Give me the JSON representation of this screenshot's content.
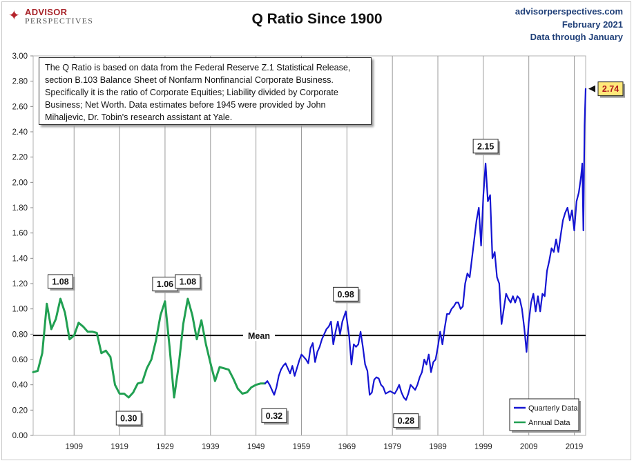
{
  "header": {
    "logo_line1": "ADVISOR",
    "logo_line2": "PERSPECTIVES",
    "title": "Q Ratio Since 1900",
    "source_site": "advisorperspectives.com",
    "source_date": "February 2021",
    "source_note": "Data through January"
  },
  "colors": {
    "quarterly": "#1414d2",
    "annual": "#21a052",
    "mean_line": "#000000",
    "grid": "#9a9a9a",
    "callout_highlight": "#ffe87a"
  },
  "chart_data": {
    "type": "line",
    "title": "Q Ratio Since 1900",
    "xlabel": "",
    "ylabel": "",
    "xlim": [
      1900,
      2021.5
    ],
    "ylim": [
      0,
      3.0
    ],
    "y_ticks": [
      "0.00",
      "0.20",
      "0.40",
      "0.60",
      "0.80",
      "1.00",
      "1.20",
      "1.40",
      "1.60",
      "1.80",
      "2.00",
      "2.20",
      "2.40",
      "2.60",
      "2.80",
      "3.00"
    ],
    "x_ticks": [
      "1909",
      "1919",
      "1929",
      "1939",
      "1949",
      "1959",
      "1969",
      "1979",
      "1989",
      "1999",
      "2009",
      "2019"
    ],
    "grid": "vertical",
    "mean": {
      "value": 0.79,
      "label": "Mean"
    },
    "legend": {
      "position": "bottom-right",
      "entries": [
        "Quarterly Data",
        "Annual Data"
      ]
    },
    "series": [
      {
        "name": "Annual Data",
        "points": [
          [
            1900,
            0.5
          ],
          [
            1901,
            0.51
          ],
          [
            1902,
            0.65
          ],
          [
            1903,
            1.04
          ],
          [
            1904,
            0.84
          ],
          [
            1905,
            0.92
          ],
          [
            1906,
            1.08
          ],
          [
            1907,
            0.97
          ],
          [
            1908,
            0.76
          ],
          [
            1909,
            0.79
          ],
          [
            1910,
            0.89
          ],
          [
            1911,
            0.86
          ],
          [
            1912,
            0.82
          ],
          [
            1913,
            0.82
          ],
          [
            1914,
            0.81
          ],
          [
            1915,
            0.65
          ],
          [
            1916,
            0.67
          ],
          [
            1917,
            0.62
          ],
          [
            1918,
            0.4
          ],
          [
            1919,
            0.33
          ],
          [
            1920,
            0.33
          ],
          [
            1921,
            0.3
          ],
          [
            1922,
            0.34
          ],
          [
            1923,
            0.41
          ],
          [
            1924,
            0.42
          ],
          [
            1925,
            0.53
          ],
          [
            1926,
            0.6
          ],
          [
            1927,
            0.75
          ],
          [
            1928,
            0.95
          ],
          [
            1929,
            1.06
          ],
          [
            1930,
            0.7
          ],
          [
            1931,
            0.3
          ],
          [
            1932,
            0.55
          ],
          [
            1933,
            0.88
          ],
          [
            1934,
            1.08
          ],
          [
            1935,
            0.95
          ],
          [
            1936,
            0.76
          ],
          [
            1937,
            0.91
          ],
          [
            1938,
            0.72
          ],
          [
            1939,
            0.57
          ],
          [
            1940,
            0.43
          ],
          [
            1941,
            0.54
          ],
          [
            1942,
            0.53
          ],
          [
            1943,
            0.52
          ],
          [
            1944,
            0.45
          ],
          [
            1945,
            0.37
          ],
          [
            1946,
            0.33
          ],
          [
            1947,
            0.34
          ],
          [
            1948,
            0.38
          ],
          [
            1949,
            0.4
          ],
          [
            1950,
            0.41
          ],
          [
            1951,
            0.41
          ]
        ]
      },
      {
        "name": "Quarterly Data",
        "points": [
          [
            1951,
            0.41
          ],
          [
            1951.5,
            0.43
          ],
          [
            1952,
            0.4
          ],
          [
            1952.5,
            0.36
          ],
          [
            1953,
            0.32
          ],
          [
            1953.5,
            0.38
          ],
          [
            1954,
            0.47
          ],
          [
            1954.5,
            0.52
          ],
          [
            1955,
            0.55
          ],
          [
            1955.5,
            0.57
          ],
          [
            1956,
            0.53
          ],
          [
            1956.5,
            0.49
          ],
          [
            1957,
            0.55
          ],
          [
            1957.5,
            0.47
          ],
          [
            1958,
            0.53
          ],
          [
            1958.5,
            0.59
          ],
          [
            1959,
            0.64
          ],
          [
            1959.5,
            0.62
          ],
          [
            1960,
            0.6
          ],
          [
            1960.5,
            0.57
          ],
          [
            1961,
            0.69
          ],
          [
            1961.5,
            0.73
          ],
          [
            1962,
            0.58
          ],
          [
            1962.5,
            0.66
          ],
          [
            1963,
            0.7
          ],
          [
            1963.5,
            0.76
          ],
          [
            1964,
            0.8
          ],
          [
            1964.5,
            0.84
          ],
          [
            1965,
            0.86
          ],
          [
            1965.5,
            0.9
          ],
          [
            1966,
            0.72
          ],
          [
            1966.5,
            0.82
          ],
          [
            1967,
            0.9
          ],
          [
            1967.5,
            0.8
          ],
          [
            1968,
            0.9
          ],
          [
            1968.75,
            0.98
          ],
          [
            1969.5,
            0.78
          ],
          [
            1970,
            0.56
          ],
          [
            1970.5,
            0.72
          ],
          [
            1971,
            0.7
          ],
          [
            1971.5,
            0.72
          ],
          [
            1972,
            0.82
          ],
          [
            1972.5,
            0.7
          ],
          [
            1973,
            0.56
          ],
          [
            1973.5,
            0.51
          ],
          [
            1974,
            0.32
          ],
          [
            1974.5,
            0.34
          ],
          [
            1975,
            0.44
          ],
          [
            1975.5,
            0.46
          ],
          [
            1976,
            0.45
          ],
          [
            1976.5,
            0.4
          ],
          [
            1977,
            0.38
          ],
          [
            1977.5,
            0.33
          ],
          [
            1978,
            0.34
          ],
          [
            1978.5,
            0.35
          ],
          [
            1979,
            0.34
          ],
          [
            1979.5,
            0.33
          ],
          [
            1980,
            0.36
          ],
          [
            1980.5,
            0.4
          ],
          [
            1981,
            0.34
          ],
          [
            1981.5,
            0.3
          ],
          [
            1982,
            0.28
          ],
          [
            1982.5,
            0.33
          ],
          [
            1983,
            0.4
          ],
          [
            1983.5,
            0.38
          ],
          [
            1984,
            0.36
          ],
          [
            1984.5,
            0.4
          ],
          [
            1985,
            0.46
          ],
          [
            1985.5,
            0.5
          ],
          [
            1986,
            0.6
          ],
          [
            1986.5,
            0.56
          ],
          [
            1987,
            0.64
          ],
          [
            1987.5,
            0.5
          ],
          [
            1988,
            0.58
          ],
          [
            1988.5,
            0.6
          ],
          [
            1989,
            0.7
          ],
          [
            1989.5,
            0.82
          ],
          [
            1990,
            0.72
          ],
          [
            1990.5,
            0.85
          ],
          [
            1991,
            0.96
          ],
          [
            1991.5,
            0.96
          ],
          [
            1992,
            1.0
          ],
          [
            1992.5,
            1.02
          ],
          [
            1993,
            1.05
          ],
          [
            1993.5,
            1.05
          ],
          [
            1994,
            1.0
          ],
          [
            1994.5,
            1.02
          ],
          [
            1995,
            1.2
          ],
          [
            1995.5,
            1.28
          ],
          [
            1996,
            1.25
          ],
          [
            1996.5,
            1.4
          ],
          [
            1997,
            1.55
          ],
          [
            1997.5,
            1.7
          ],
          [
            1998,
            1.8
          ],
          [
            1998.5,
            1.5
          ],
          [
            1999,
            1.9
          ],
          [
            1999.5,
            2.15
          ],
          [
            2000,
            1.85
          ],
          [
            2000.5,
            1.9
          ],
          [
            2001,
            1.4
          ],
          [
            2001.5,
            1.45
          ],
          [
            2002,
            1.25
          ],
          [
            2002.5,
            1.2
          ],
          [
            2003,
            0.88
          ],
          [
            2003.5,
            1.0
          ],
          [
            2004,
            1.12
          ],
          [
            2004.5,
            1.08
          ],
          [
            2005,
            1.05
          ],
          [
            2005.5,
            1.1
          ],
          [
            2006,
            1.05
          ],
          [
            2006.5,
            1.1
          ],
          [
            2007,
            1.08
          ],
          [
            2007.5,
            1.0
          ],
          [
            2008,
            0.85
          ],
          [
            2008.5,
            0.66
          ],
          [
            2009,
            0.9
          ],
          [
            2009.5,
            1.05
          ],
          [
            2010,
            1.12
          ],
          [
            2010.5,
            0.98
          ],
          [
            2011,
            1.1
          ],
          [
            2011.5,
            0.98
          ],
          [
            2012,
            1.12
          ],
          [
            2012.5,
            1.1
          ],
          [
            2013,
            1.3
          ],
          [
            2013.5,
            1.38
          ],
          [
            2014,
            1.48
          ],
          [
            2014.5,
            1.45
          ],
          [
            2015,
            1.55
          ],
          [
            2015.5,
            1.45
          ],
          [
            2016,
            1.58
          ],
          [
            2016.5,
            1.7
          ],
          [
            2017,
            1.76
          ],
          [
            2017.5,
            1.8
          ],
          [
            2018,
            1.7
          ],
          [
            2018.5,
            1.78
          ],
          [
            2019,
            1.62
          ],
          [
            2019.5,
            1.85
          ],
          [
            2020,
            1.92
          ],
          [
            2020.5,
            2.05
          ],
          [
            2020.75,
            2.15
          ],
          [
            2021,
            1.62
          ],
          [
            2021.25,
            2.45
          ],
          [
            2021.5,
            2.74
          ]
        ]
      }
    ],
    "annotations": [
      {
        "label": "1.08",
        "x": 1906,
        "y": 1.08,
        "style": "peak"
      },
      {
        "label": "0.30",
        "x": 1921,
        "y": 0.3,
        "style": "trough"
      },
      {
        "label": "1.06",
        "x": 1929,
        "y": 1.06,
        "style": "peak"
      },
      {
        "label": "1.08",
        "x": 1934,
        "y": 1.08,
        "style": "peak"
      },
      {
        "label": "0.32",
        "x": 1953,
        "y": 0.32,
        "style": "trough"
      },
      {
        "label": "0.98",
        "x": 1968.75,
        "y": 0.98,
        "style": "peak"
      },
      {
        "label": "0.28",
        "x": 1982,
        "y": 0.28,
        "style": "trough"
      },
      {
        "label": "2.15",
        "x": 1999.5,
        "y": 2.15,
        "style": "peak"
      },
      {
        "label": "2.74",
        "x": 2021.5,
        "y": 2.74,
        "style": "latest"
      }
    ],
    "note": "The Q Ratio is based on data from the Federal Reserve Z.1 Statistical Release, section B.103 Balance Sheet of Nonfarm Nonfinancial Corporate Business. Specifically it is the ratio  of Corporate Equities; Liability divided by Corporate Business; Net Worth.  Data estimates before 1945 were provided by John Mihaljevic, Dr. Tobin's research assistant at Yale."
  }
}
